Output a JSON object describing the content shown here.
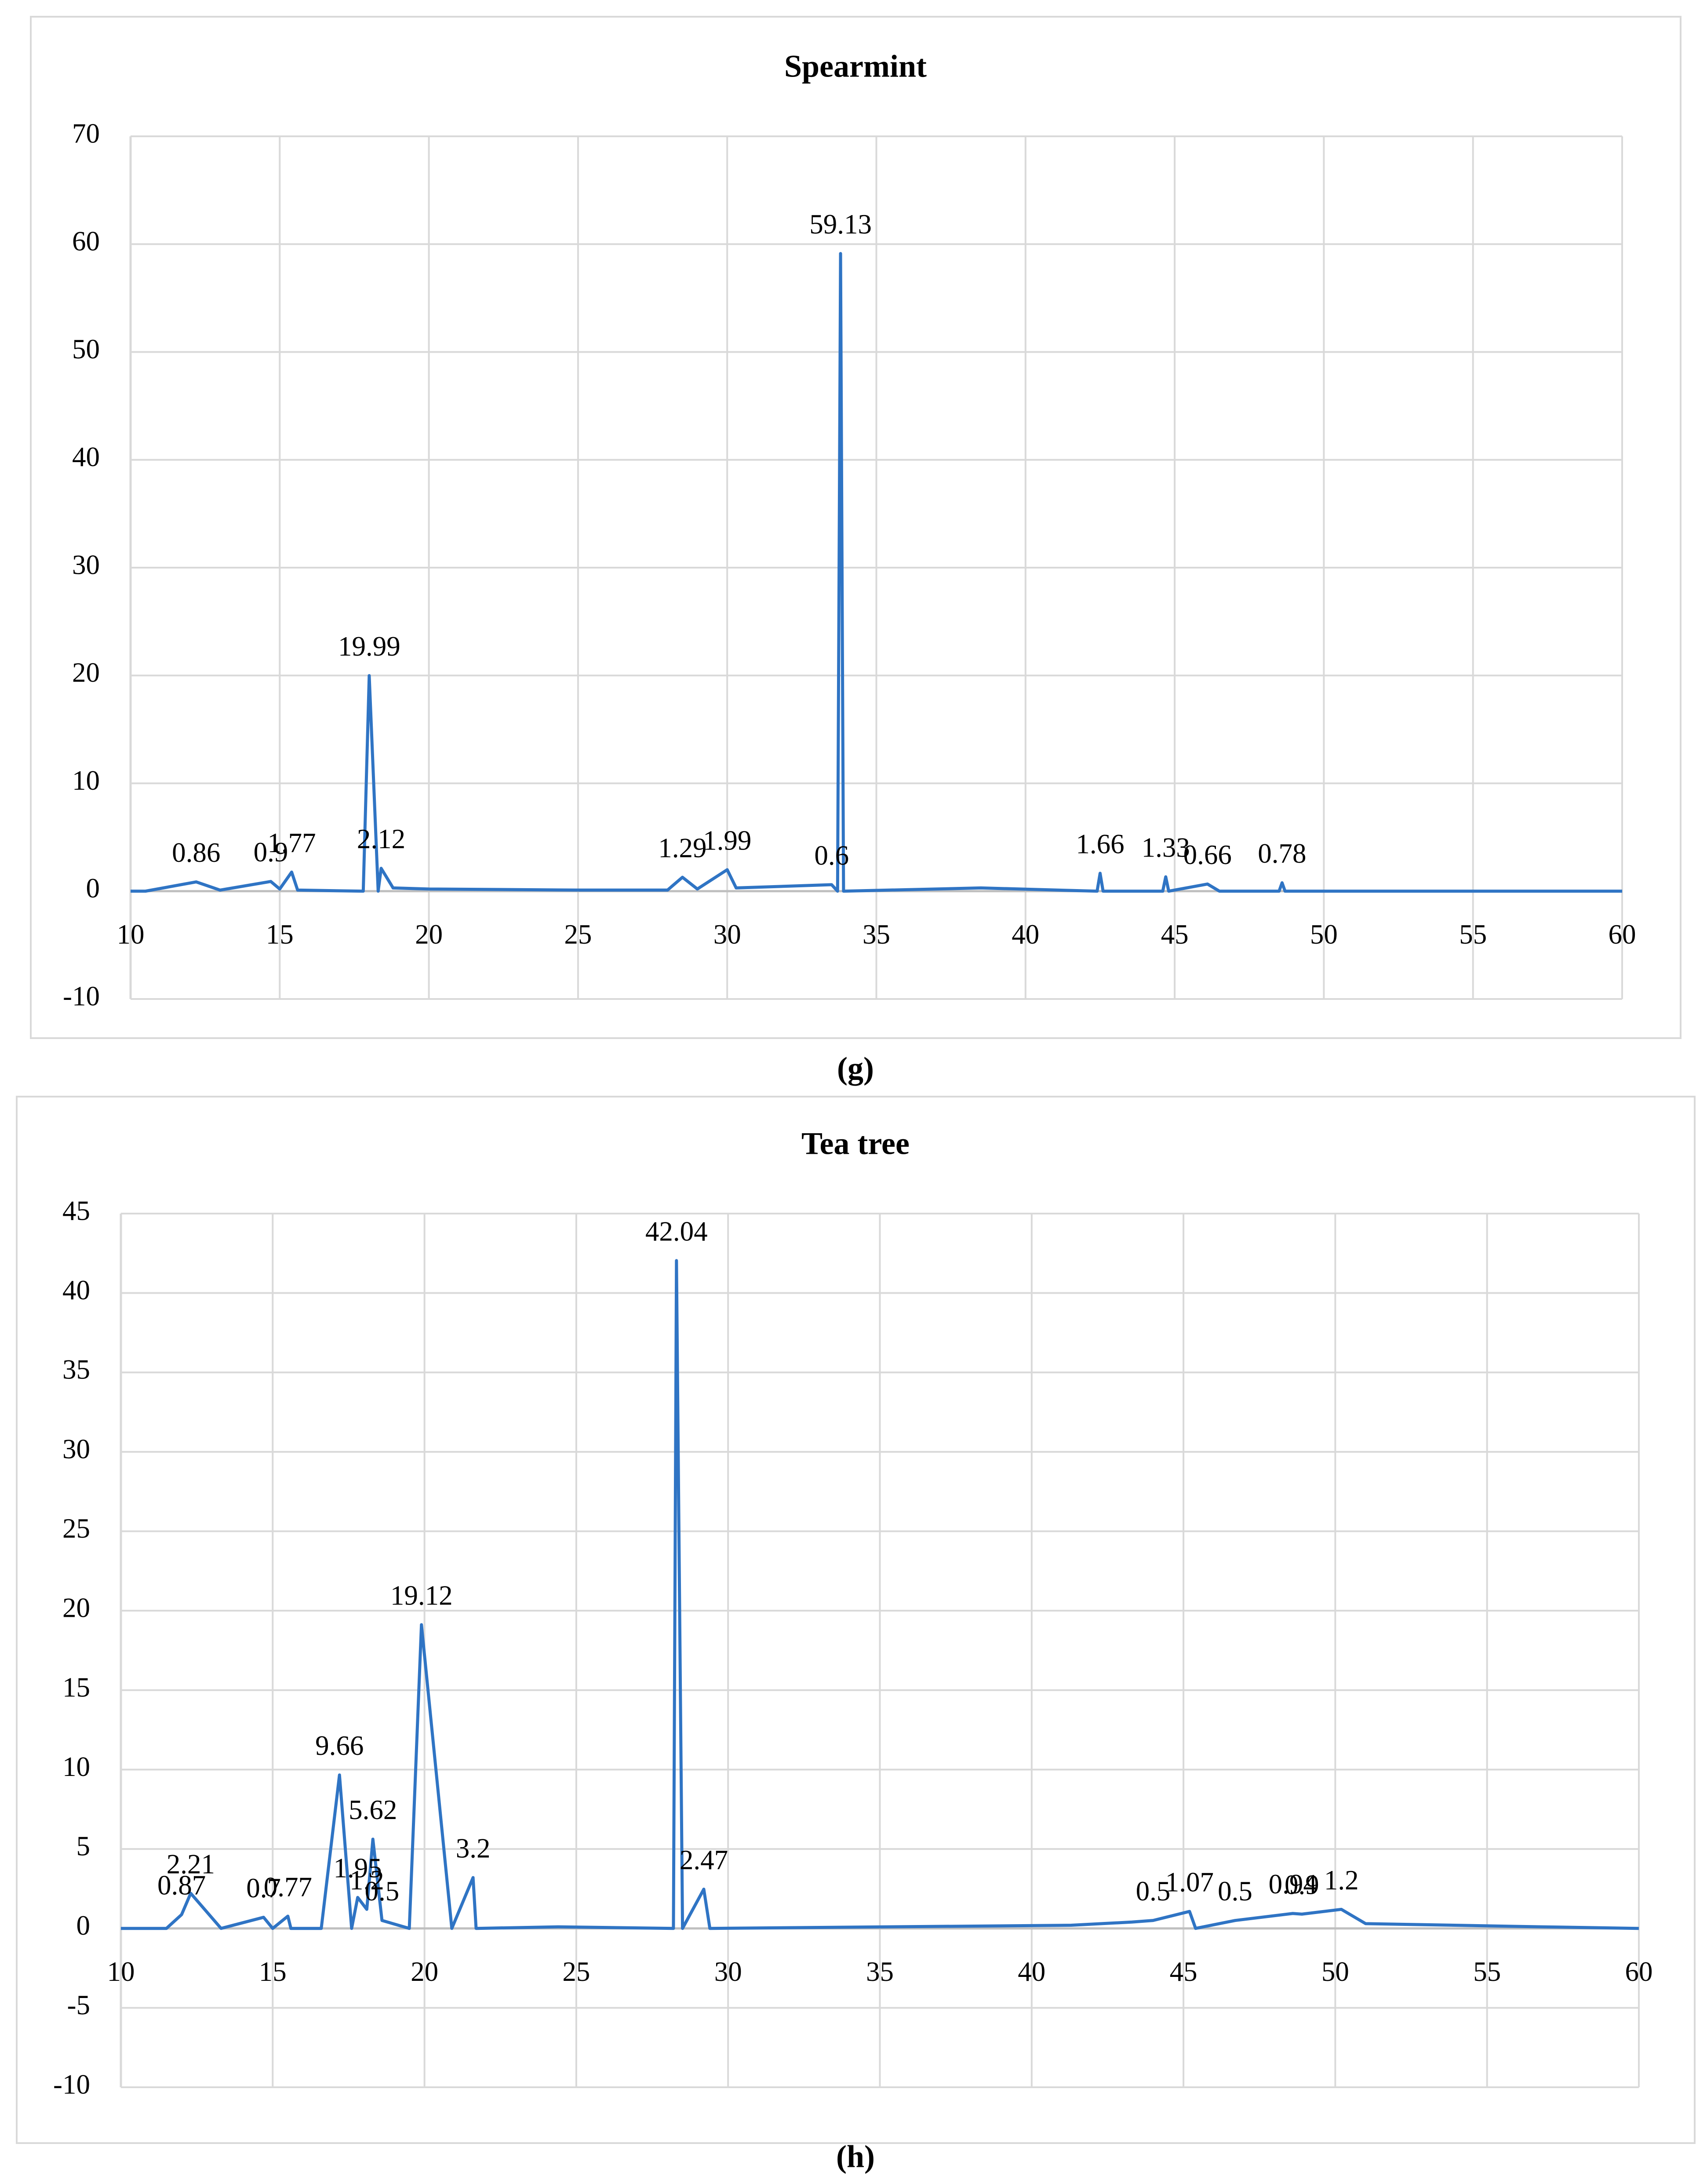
{
  "chart_data": [
    {
      "type": "line",
      "title": "Spearmint",
      "caption": "(g)",
      "x": [
        10,
        10.5,
        12.2,
        13,
        14.7,
        15,
        15.4,
        15.6,
        17.8,
        18,
        18.3,
        18.4,
        18.8,
        20,
        25,
        28,
        28.5,
        29,
        30,
        30.3,
        33.5,
        33.7,
        33.8,
        33.9,
        38.5,
        42.4,
        42.5,
        42.6,
        44.6,
        44.7,
        44.8,
        46.1,
        46.5,
        48.5,
        48.6,
        48.7,
        55,
        60
      ],
      "values": [
        0,
        0,
        0.86,
        0.1,
        0.9,
        0.2,
        1.77,
        0.1,
        0,
        19.99,
        0,
        2.12,
        0.3,
        0.2,
        0.1,
        0.1,
        1.29,
        0.2,
        1.99,
        0.3,
        0.6,
        0,
        59.13,
        0,
        0.3,
        0,
        1.66,
        0,
        0,
        1.33,
        0,
        0.66,
        0,
        0,
        0.78,
        0,
        0,
        0
      ],
      "color": "#2f74c4",
      "xlim": [
        10,
        60
      ],
      "xticks": [
        10,
        15,
        20,
        25,
        30,
        35,
        40,
        45,
        50,
        55,
        60
      ],
      "ylim": [
        -10,
        70
      ],
      "yticks": [
        -10,
        0,
        10,
        20,
        30,
        40,
        50,
        60,
        70
      ],
      "grid": true
    },
    {
      "type": "line",
      "title": "Tea tree",
      "caption": "(h)",
      "x": [
        10,
        11.5,
        12,
        12.3,
        13.3,
        14.7,
        15,
        15.5,
        15.6,
        16.6,
        17.2,
        17.6,
        17.8,
        18.1,
        18.3,
        18.6,
        19.5,
        19.9,
        20.9,
        21.6,
        21.7,
        24.4,
        28.2,
        28.3,
        28.5,
        29.2,
        29.4,
        41.3,
        43.3,
        44,
        45.2,
        45.4,
        46.7,
        48.6,
        48.9,
        50.2,
        51,
        56.8,
        60
      ],
      "values": [
        0,
        0,
        0.87,
        2.21,
        0,
        0.7,
        0,
        0.77,
        0,
        0,
        9.66,
        0,
        1.95,
        1.2,
        5.62,
        0.5,
        0,
        19.12,
        0,
        3.2,
        0,
        0.1,
        0,
        42.04,
        0,
        2.47,
        0,
        0.2,
        0.4,
        0.5,
        1.07,
        0,
        0.5,
        0.94,
        0.9,
        1.2,
        0.3,
        0.1,
        0
      ],
      "color": "#2f74c4",
      "xlim": [
        10,
        60
      ],
      "xticks": [
        10,
        15,
        20,
        25,
        30,
        35,
        40,
        45,
        50,
        55,
        60
      ],
      "ylim": [
        -10,
        45
      ],
      "yticks": [
        -10,
        -5,
        0,
        5,
        10,
        15,
        20,
        25,
        30,
        35,
        40,
        45
      ],
      "grid": true
    }
  ]
}
